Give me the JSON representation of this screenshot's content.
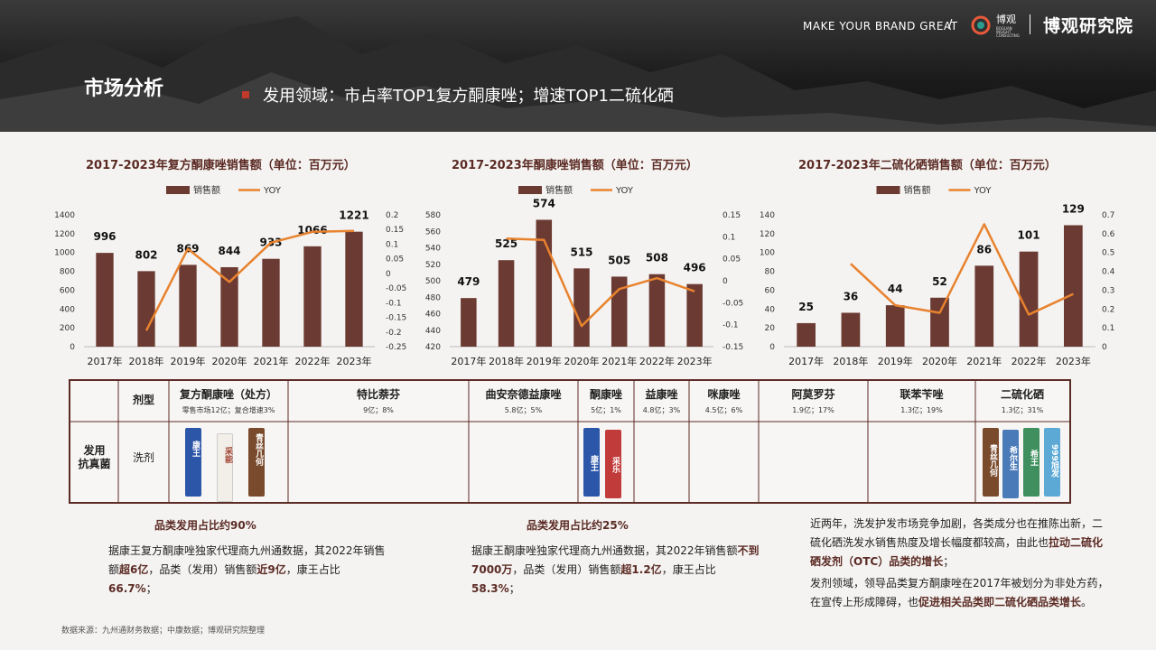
{
  "header": {
    "page_title": "市场分析",
    "subtitle": "发用领域：市占率TOP1复方酮康唑；增速TOP1二硫化硒",
    "slogan": "MAKE YOUR BRAND GREAT",
    "slash": "/",
    "logo_text": "博观",
    "logo_sub": "BOGUAN INSIGHT CONSULTING",
    "brand_name": "博观研究院"
  },
  "chart_data": [
    {
      "type": "bar",
      "title": "2017-2023年复方酮康唑销售额（单位：百万元）",
      "legend": [
        "销售额",
        "YOY"
      ],
      "categories": [
        "2017年",
        "2018年",
        "2019年",
        "2020年",
        "2021年",
        "2022年",
        "2023年"
      ],
      "series": [
        {
          "name": "销售额",
          "type": "bar",
          "values": [
            996,
            802,
            869,
            844,
            933,
            1066,
            1221
          ]
        },
        {
          "name": "YOY",
          "type": "line",
          "values": [
            null,
            -0.195,
            0.084,
            -0.029,
            0.105,
            0.142,
            0.145
          ]
        }
      ],
      "ylim": [
        0,
        1400
      ],
      "yticks": [
        0,
        200,
        400,
        600,
        800,
        1000,
        1200,
        1400
      ],
      "y2lim": [
        -0.25,
        0.2
      ],
      "y2ticks": [
        "0.2",
        "0.15",
        "0.1",
        "0.05",
        "0",
        "-0.05",
        "-0.1",
        "-0.15",
        "-0.2",
        "-0.25"
      ],
      "y2tick_values": [
        0.2,
        0.15,
        0.1,
        0.05,
        0,
        -0.05,
        -0.1,
        -0.15,
        -0.2,
        -0.25
      ],
      "bar_color": "#6b3a32",
      "line_color": "#e8822e"
    },
    {
      "type": "bar",
      "title": "2017-2023年酮康唑销售额（单位：百万元）",
      "legend": [
        "销售额",
        "YOY"
      ],
      "categories": [
        "2017年",
        "2018年",
        "2019年",
        "2020年",
        "2021年",
        "2022年",
        "2023年"
      ],
      "series": [
        {
          "name": "销售额",
          "type": "bar",
          "values": [
            479,
            525,
            574,
            515,
            505,
            508,
            496
          ]
        },
        {
          "name": "YOY",
          "type": "line",
          "values": [
            null,
            0.096,
            0.093,
            -0.103,
            -0.019,
            0.006,
            -0.024
          ]
        }
      ],
      "ylim": [
        420,
        580
      ],
      "yticks": [
        420,
        440,
        460,
        480,
        500,
        520,
        540,
        560,
        580
      ],
      "y2lim": [
        -0.15,
        0.15
      ],
      "y2ticks": [
        "0.15",
        "0.1",
        "0.05",
        "0",
        "-0.05",
        "-0.1",
        "-0.15"
      ],
      "y2tick_values": [
        0.15,
        0.1,
        0.05,
        0,
        -0.05,
        -0.1,
        -0.15
      ],
      "bar_color": "#6b3a32",
      "line_color": "#e8822e"
    },
    {
      "type": "bar",
      "title": "2017-2023年二硫化硒销售额（单位：百万元）",
      "legend": [
        "销售额",
        "YOY"
      ],
      "categories": [
        "2017年",
        "2018年",
        "2019年",
        "2020年",
        "2021年",
        "2022年",
        "2023年"
      ],
      "series": [
        {
          "name": "销售额",
          "type": "bar",
          "values": [
            25,
            36,
            44,
            52,
            86,
            101,
            129
          ]
        },
        {
          "name": "YOY",
          "type": "line",
          "values": [
            null,
            0.44,
            0.22,
            0.18,
            0.65,
            0.17,
            0.28
          ]
        }
      ],
      "ylim": [
        0,
        140
      ],
      "yticks": [
        0,
        20,
        40,
        60,
        80,
        100,
        120,
        140
      ],
      "y2lim": [
        0,
        0.7
      ],
      "y2ticks": [
        "0",
        "0.1",
        "0.2",
        "0.3",
        "0.4",
        "0.5",
        "0.6",
        "0.7"
      ],
      "y2tick_values": [
        0,
        0.1,
        0.2,
        0.3,
        0.4,
        0.5,
        0.6,
        0.7
      ],
      "bar_color": "#6b3a32",
      "line_color": "#e8822e"
    }
  ],
  "table": {
    "dosage_header": "剂型",
    "row_label": "发用\n抗真菌",
    "row_dosage": "洗剂",
    "columns": [
      {
        "name": "复方酮康唑（处方）",
        "sub": "零售市场12亿；复合增速3%"
      },
      {
        "name": "特比萘芬",
        "sub": "9亿；8%"
      },
      {
        "name": "曲安奈德益康唑",
        "sub": "5.8亿；5%"
      },
      {
        "name": "酮康唑",
        "sub": "5亿；1%"
      },
      {
        "name": "益康唑",
        "sub": "4.8亿；3%"
      },
      {
        "name": "咪康唑",
        "sub": "4.5亿；6%"
      },
      {
        "name": "阿莫罗芬",
        "sub": "1.9亿；17%"
      },
      {
        "name": "联苯苄唑",
        "sub": "1.3亿；19%"
      },
      {
        "name": "二硫化硒",
        "sub": "1.3亿；31%"
      }
    ],
    "products": {
      "col1": [
        "康王",
        "采能",
        "青丝几何"
      ],
      "col4": [
        "康王",
        "采乐"
      ],
      "col9": [
        "青丝几何",
        "希尔生",
        "希王",
        "999旭发"
      ]
    }
  },
  "notes": {
    "left_head": "品类发用占比约90%",
    "left_text": [
      "据康王复方酮康唑独家代理商九州通数据，其2022年销售额",
      "超6亿",
      "，品类（发用）销售额",
      "近9亿",
      "，康王占比",
      "66.7%",
      "；"
    ],
    "mid_head": "品类发用占比约25%",
    "mid_text": [
      "据康王酮康唑独家代理商九州通数据，其2022年销售额",
      "不到7000万",
      "，品类（发用）销售额",
      "超1.2亿",
      "，康王占比",
      "58.3%",
      "；"
    ],
    "right_p1": [
      "近两年，洗发护发市场竞争加剧，各类成分也在推陈出新，二硫化硒洗发水销售热度及增长幅度都较高，由此也",
      "拉动二硫化硒发剂（OTC）品类的增长",
      "；"
    ],
    "right_p2": [
      "发剂领域，领导品类复方酮康唑在2017年被划分为非处方药，在宣传上形成障碍，也",
      "促进相关品类即二硫化硒品类增长",
      "。"
    ]
  },
  "source": "数据来源：九州通财务数据；中康数据；博观研究院整理"
}
